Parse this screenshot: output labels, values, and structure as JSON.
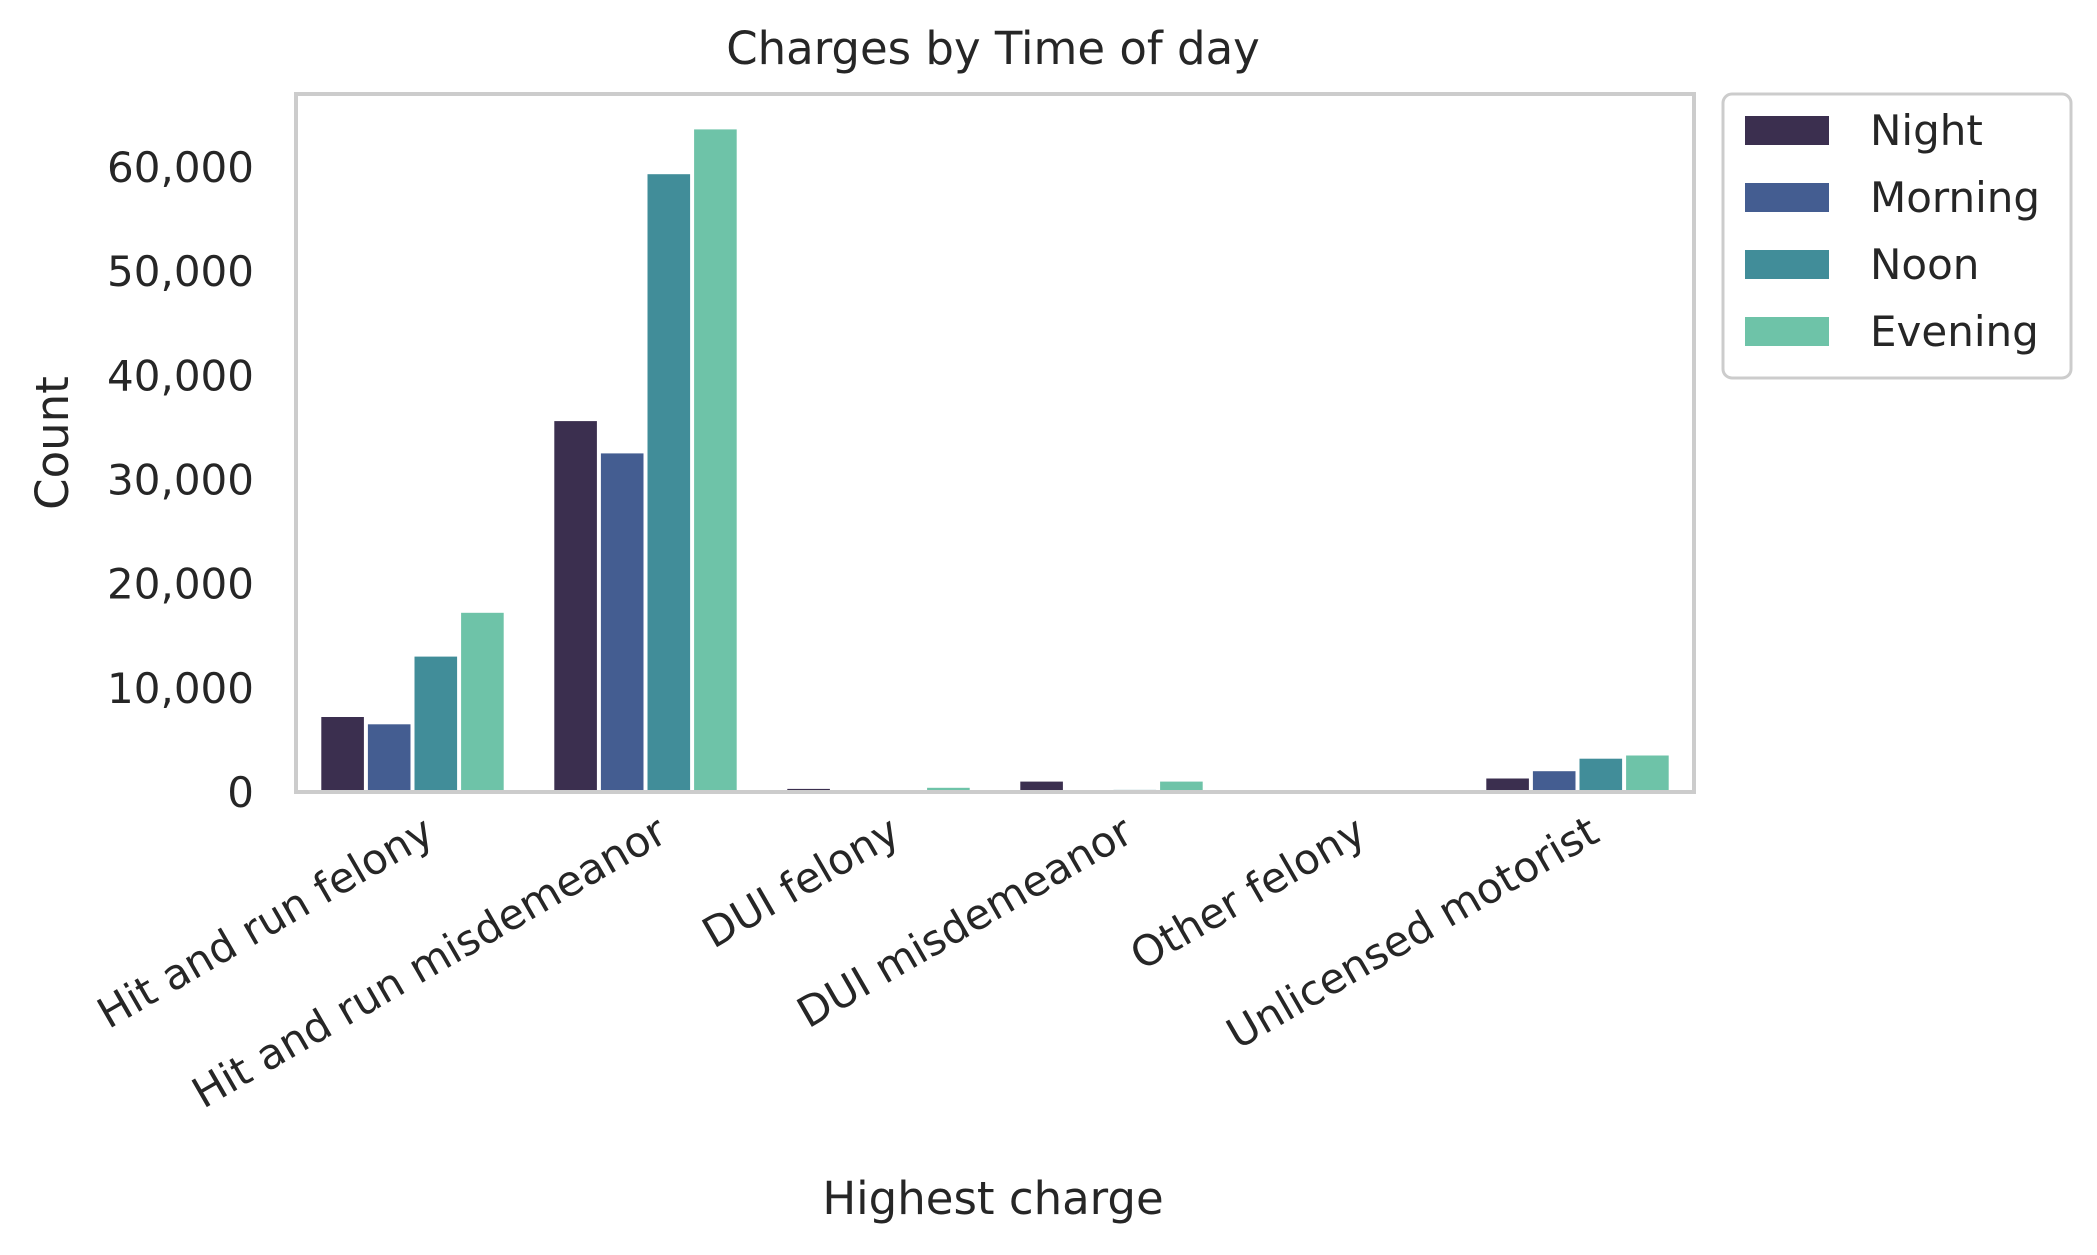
{
  "chart_data": {
    "type": "bar",
    "title": "Charges by Time of day",
    "xlabel": "Highest charge",
    "ylabel": "Count",
    "ylim": [
      0,
      67000
    ],
    "yticks": [
      0,
      10000,
      20000,
      30000,
      40000,
      50000,
      60000
    ],
    "ytick_labels": [
      "0",
      "10,000",
      "20,000",
      "30,000",
      "40,000",
      "50,000",
      "60,000"
    ],
    "categories": [
      "Hit and run felony",
      "Hit and run misdemeanor",
      "DUI felony",
      "DUI misdemeanor",
      "Other felony",
      "Unlicensed motorist"
    ],
    "series": [
      {
        "name": "Night",
        "color": "#3b2f4f",
        "values": [
          7200,
          35600,
          300,
          1000,
          50,
          1300
        ]
      },
      {
        "name": "Morning",
        "color": "#445d91",
        "values": [
          6500,
          32500,
          100,
          150,
          30,
          2000
        ]
      },
      {
        "name": "Noon",
        "color": "#418d99",
        "values": [
          13000,
          59300,
          150,
          200,
          40,
          3200
        ]
      },
      {
        "name": "Evening",
        "color": "#6ec3a8",
        "values": [
          17200,
          63600,
          400,
          1000,
          60,
          3500
        ]
      }
    ],
    "grid": false,
    "legend_position": "outside-top-right"
  }
}
